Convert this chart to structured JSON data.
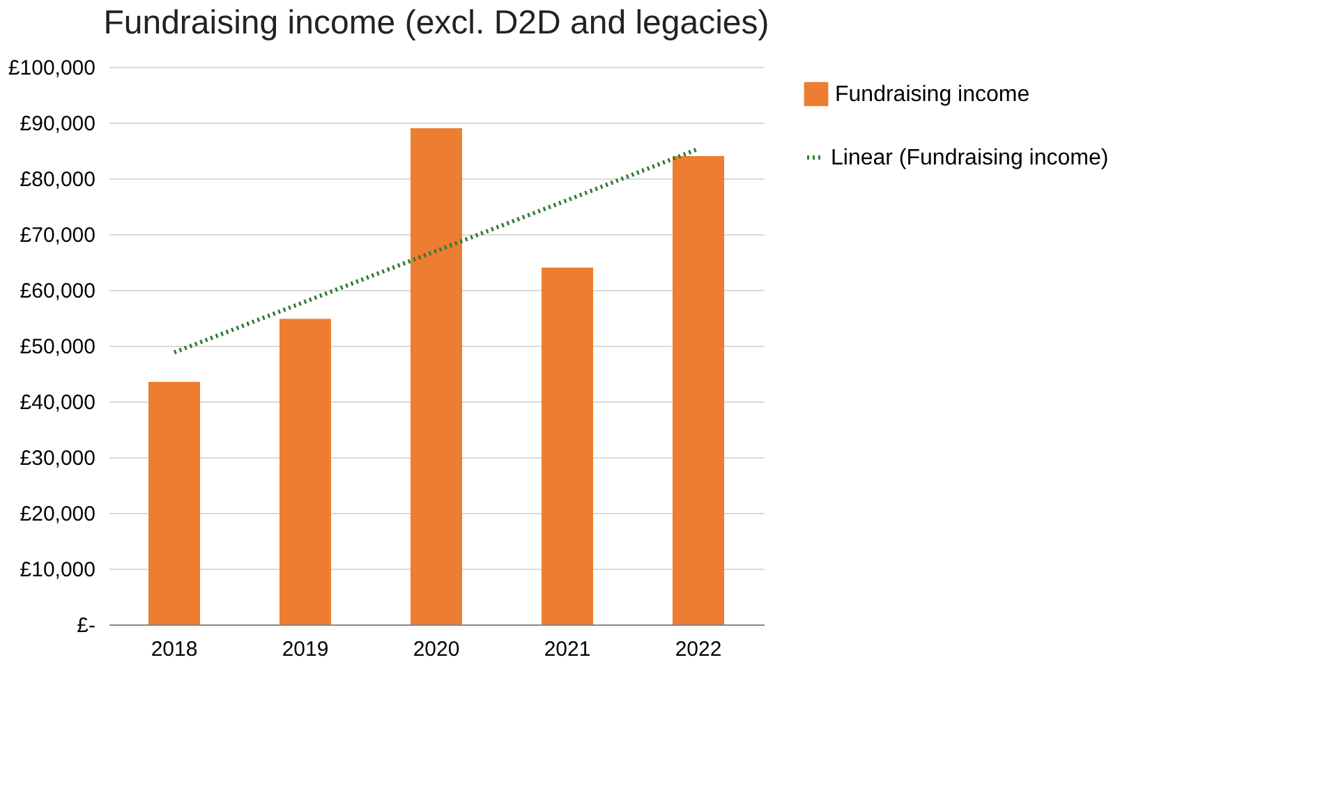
{
  "chart_data": {
    "type": "bar",
    "title": "Fundraising income (excl. D2D and legacies)",
    "categories": [
      "2018",
      "2019",
      "2020",
      "2021",
      "2022"
    ],
    "series": [
      {
        "name": "Fundraising income",
        "color": "#ed7d31",
        "values": [
          43500,
          54800,
          89000,
          64000,
          84000
        ]
      },
      {
        "name": "Linear (Fundraising income)",
        "type": "line",
        "color": "#2e7d32",
        "line_style": "dotted",
        "values": [
          48800,
          57900,
          67000,
          76100,
          85300
        ]
      }
    ],
    "ylim": [
      0,
      100000
    ],
    "yticks": [
      {
        "value": 0,
        "label": "£-"
      },
      {
        "value": 10000,
        "label": "£10,000"
      },
      {
        "value": 20000,
        "label": "£20,000"
      },
      {
        "value": 30000,
        "label": "£30,000"
      },
      {
        "value": 40000,
        "label": "£40,000"
      },
      {
        "value": 50000,
        "label": "£50,000"
      },
      {
        "value": 60000,
        "label": "£60,000"
      },
      {
        "value": 70000,
        "label": "£70,000"
      },
      {
        "value": 80000,
        "label": "£80,000"
      },
      {
        "value": 90000,
        "label": "£90,000"
      },
      {
        "value": 100000,
        "label": "£100,000"
      }
    ],
    "grid": "y",
    "legend": "right"
  }
}
